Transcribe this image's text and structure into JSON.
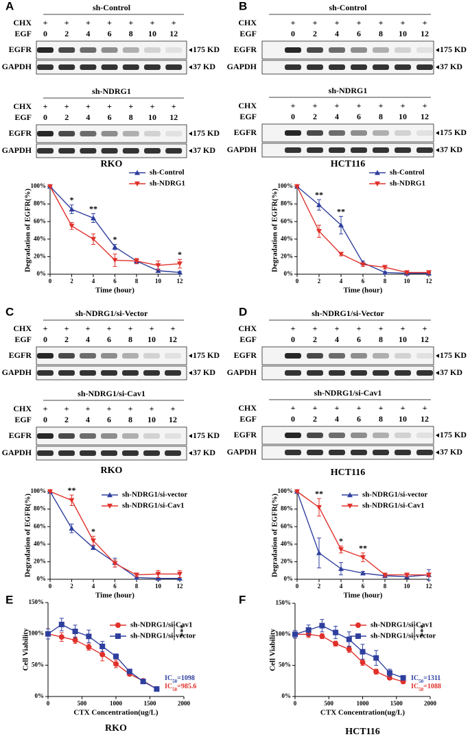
{
  "blots": [
    {
      "panel": "A",
      "cell": "RKO",
      "blots": [
        {
          "title": "sh-Control",
          "chx_label": "CHX",
          "chx": [
            "+",
            "+",
            "+",
            "+",
            "+",
            "+",
            "+"
          ],
          "egf_label": "EGF",
          "egf": [
            "0",
            "2",
            "4",
            "6",
            "8",
            "10",
            "12"
          ],
          "rows": [
            {
              "label": "EGFR",
              "marker": "175 KD"
            },
            {
              "label": "GAPDH",
              "marker": "37 KD"
            }
          ]
        },
        {
          "title": "sh-NDRG1",
          "chx_label": "CHX",
          "chx": [
            "+",
            "+",
            "+",
            "+",
            "+",
            "+",
            "+"
          ],
          "egf_label": "EGF",
          "egf": [
            "0",
            "2",
            "4",
            "6",
            "8",
            "10",
            "12"
          ],
          "rows": [
            {
              "label": "EGFR",
              "marker": "175 KD"
            },
            {
              "label": "GAPDH",
              "marker": "37 KD"
            }
          ]
        }
      ]
    },
    {
      "panel": "B",
      "cell": "HCT116",
      "blots": [
        {
          "title": "sh-Control",
          "chx_label": "CHX",
          "chx": [
            "+",
            "+",
            "+",
            "+",
            "+",
            "+",
            "+"
          ],
          "egf_label": "EGF",
          "egf": [
            "0",
            "2",
            "4",
            "6",
            "8",
            "10",
            "12"
          ],
          "rows": [
            {
              "label": "EGFR",
              "marker": "175 KD"
            },
            {
              "label": "GAPDH",
              "marker": "37 KD"
            }
          ]
        },
        {
          "title": "sh-NDRG1",
          "chx_label": "CHX",
          "chx": [
            "+",
            "+",
            "+",
            "+",
            "+",
            "+",
            "+"
          ],
          "egf_label": "EGF",
          "egf": [
            "0",
            "2",
            "4",
            "6",
            "8",
            "10",
            "12"
          ],
          "rows": [
            {
              "label": "EGFR",
              "marker": "175 KD"
            },
            {
              "label": "GAPDH",
              "marker": "37 KD"
            }
          ]
        }
      ]
    },
    {
      "panel": "C",
      "cell": "RKO",
      "blots": [
        {
          "title": "sh-NDRG1/si-Vector",
          "chx_label": "CHX",
          "chx": [
            "+",
            "+",
            "+",
            "+",
            "+",
            "+",
            "+"
          ],
          "egf_label": "EGF",
          "egf": [
            "0",
            "2",
            "4",
            "6",
            "8",
            "10",
            "12"
          ],
          "rows": [
            {
              "label": "EGFR",
              "marker": "175 KD"
            },
            {
              "label": "GAPDH",
              "marker": "37 KD"
            }
          ]
        },
        {
          "title": "sh-NDRG1/si-Cav1",
          "chx_label": "CHX",
          "chx": [
            "+",
            "+",
            "+",
            "+",
            "+",
            "+",
            "+"
          ],
          "egf_label": "EGF",
          "egf": [
            "0",
            "2",
            "4",
            "6",
            "8",
            "10",
            "12"
          ],
          "rows": [
            {
              "label": "EGFR",
              "marker": "175 KD"
            },
            {
              "label": "GAPDH",
              "marker": "37 KD"
            }
          ]
        }
      ]
    },
    {
      "panel": "D",
      "cell": "HCT116",
      "blots": [
        {
          "title": "sh-NDRG1/si-Vector",
          "chx_label": "CHX",
          "chx": [
            "+",
            "+",
            "+",
            "+",
            "+",
            "+",
            "+"
          ],
          "egf_label": "EGF",
          "egf": [
            "0",
            "2",
            "4",
            "6",
            "8",
            "10",
            "12"
          ],
          "rows": [
            {
              "label": "EGFR",
              "marker": "175 KD"
            },
            {
              "label": "GAPDH",
              "marker": "37 KD"
            }
          ]
        },
        {
          "title": "sh-NDRG1/si-Cav1",
          "chx_label": "CHX",
          "chx": [
            "+",
            "+",
            "+",
            "+",
            "+",
            "+",
            "+"
          ],
          "egf_label": "EGF",
          "egf": [
            "0",
            "2",
            "4",
            "6",
            "8",
            "10",
            "12"
          ],
          "rows": [
            {
              "label": "EGFR",
              "marker": "175 KD"
            },
            {
              "label": "GAPDH",
              "marker": "37 KD"
            }
          ]
        }
      ]
    }
  ],
  "chart_data": [
    {
      "type": "line",
      "xlabel": "Time (hour)",
      "ylabel": "Degradation of EGFR(%)",
      "x": [
        0,
        2,
        4,
        6,
        8,
        10,
        12
      ],
      "xlim": [
        0,
        12
      ],
      "xticks": [
        0,
        2,
        4,
        6,
        8,
        10,
        12
      ],
      "ylim": [
        0,
        100
      ],
      "yticks": [
        {
          "value": 0,
          "label": "0%"
        },
        {
          "value": 20,
          "label": "20%"
        },
        {
          "value": 40,
          "label": "40%"
        },
        {
          "value": 60,
          "label": "60%"
        },
        {
          "value": 80,
          "label": "80%"
        },
        {
          "value": 100,
          "label": "100%"
        }
      ],
      "series": [
        {
          "name": "sh-Control",
          "color": "#2e3f9e",
          "marker": "triangle-up",
          "values": [
            100,
            74,
            64,
            31,
            15,
            4,
            2
          ],
          "errors": [
            0,
            5,
            5,
            3,
            3,
            2,
            1
          ]
        },
        {
          "name": "sh-NDRG1",
          "color": "#e0302a",
          "marker": "triangle-down",
          "values": [
            100,
            55,
            40,
            16,
            15,
            10,
            12
          ],
          "errors": [
            0,
            4,
            6,
            7,
            3,
            5,
            5
          ]
        }
      ],
      "annotations": [
        {
          "x": 2,
          "text": "*"
        },
        {
          "x": 4,
          "text": "**"
        },
        {
          "x": 6,
          "text": "*"
        },
        {
          "x": 12,
          "text": "*"
        }
      ]
    },
    {
      "type": "line",
      "xlabel": "Time (hour)",
      "ylabel": "Degradation of EGFR(%)",
      "x": [
        0,
        2,
        4,
        6,
        8,
        10,
        12
      ],
      "xlim": [
        0,
        12
      ],
      "xticks": [
        0,
        2,
        4,
        6,
        8,
        10,
        12
      ],
      "ylim": [
        0,
        100
      ],
      "yticks": [
        {
          "value": 0,
          "label": "0%"
        },
        {
          "value": 20,
          "label": "20%"
        },
        {
          "value": 40,
          "label": "40%"
        },
        {
          "value": 60,
          "label": "60%"
        },
        {
          "value": 80,
          "label": "80%"
        },
        {
          "value": 100,
          "label": "100%"
        }
      ],
      "series": [
        {
          "name": "sh-Control",
          "color": "#2e3f9e",
          "marker": "triangle-up",
          "values": [
            100,
            79,
            56,
            13,
            2,
            1,
            1
          ],
          "errors": [
            0,
            6,
            10,
            2,
            1,
            1,
            1
          ]
        },
        {
          "name": "sh-NDRG1",
          "color": "#e0302a",
          "marker": "triangle-down",
          "values": [
            100,
            49,
            23,
            11,
            8,
            2,
            2
          ],
          "errors": [
            0,
            7,
            2,
            2,
            2,
            1,
            1
          ]
        }
      ],
      "annotations": [
        {
          "x": 2,
          "text": "**"
        },
        {
          "x": 4,
          "text": "**"
        }
      ]
    },
    {
      "type": "line",
      "xlabel": "Time (hour)",
      "ylabel": "Degradation of EGFR(%)",
      "x": [
        0,
        2,
        4,
        6,
        8,
        10,
        12
      ],
      "xlim": [
        0,
        12
      ],
      "xticks": [
        0,
        2,
        4,
        6,
        8,
        10,
        12
      ],
      "ylim": [
        0,
        100
      ],
      "yticks": [
        {
          "value": 0,
          "label": "0%"
        },
        {
          "value": 20,
          "label": "20%"
        },
        {
          "value": 40,
          "label": "40%"
        },
        {
          "value": 60,
          "label": "60%"
        },
        {
          "value": 80,
          "label": "80%"
        },
        {
          "value": 100,
          "label": "100%"
        }
      ],
      "series": [
        {
          "name": "sh-NDRG1/si-vector",
          "color": "#2e3f9e",
          "marker": "triangle-up",
          "values": [
            100,
            58,
            36,
            19,
            2,
            1,
            1
          ],
          "errors": [
            0,
            5,
            2,
            5,
            1,
            1,
            1
          ]
        },
        {
          "name": "sh-NDRG1/si-Cav1",
          "color": "#e0302a",
          "marker": "triangle-down",
          "values": [
            100,
            90,
            44,
            18,
            5,
            6,
            6
          ],
          "errors": [
            0,
            6,
            5,
            4,
            2,
            4,
            4
          ]
        }
      ],
      "annotations": [
        {
          "x": 2,
          "text": "**"
        },
        {
          "x": 4,
          "text": "*"
        }
      ]
    },
    {
      "type": "line",
      "xlabel": "Time (hour)",
      "ylabel": "Degradation of EGFR(%)",
      "x": [
        0,
        2,
        4,
        6,
        8,
        10,
        12
      ],
      "xlim": [
        0,
        12
      ],
      "xticks": [
        0,
        2,
        4,
        6,
        8,
        10,
        12
      ],
      "ylim": [
        0,
        100
      ],
      "yticks": [
        {
          "value": 0,
          "label": "0%"
        },
        {
          "value": 20,
          "label": "20%"
        },
        {
          "value": 40,
          "label": "40%"
        },
        {
          "value": 60,
          "label": "60%"
        },
        {
          "value": 80,
          "label": "80%"
        },
        {
          "value": 100,
          "label": "100%"
        }
      ],
      "series": [
        {
          "name": "sh-NDRG1/si-vector",
          "color": "#2e3f9e",
          "marker": "triangle-up",
          "values": [
            100,
            30,
            12,
            7,
            4,
            3,
            5
          ],
          "errors": [
            0,
            17,
            7,
            2,
            1,
            2,
            6
          ]
        },
        {
          "name": "sh-NDRG1/si-Cav1",
          "color": "#e0302a",
          "marker": "triangle-down",
          "values": [
            100,
            82,
            34,
            25,
            5,
            5,
            5
          ],
          "errors": [
            0,
            10,
            4,
            5,
            2,
            2,
            2
          ]
        }
      ],
      "annotations": [
        {
          "x": 2,
          "text": "**"
        },
        {
          "x": 4,
          "text": "*"
        },
        {
          "x": 6,
          "text": "**"
        }
      ]
    },
    {
      "type": "line",
      "panel": "E",
      "caption": "RKO",
      "xlabel": "CTX Concentration(ug/L)",
      "ylabel": "Cell Viability",
      "x": [
        0,
        200,
        400,
        600,
        800,
        1000,
        1200,
        1400,
        1600
      ],
      "xlim": [
        0,
        2000
      ],
      "xticks": [
        0,
        500,
        1000,
        1500,
        2000
      ],
      "ylim": [
        0,
        150
      ],
      "yticks": [
        {
          "value": 0,
          "label": "0%"
        },
        {
          "value": 50,
          "label": "50%"
        },
        {
          "value": 100,
          "label": "100%"
        },
        {
          "value": 150,
          "label": "150%"
        }
      ],
      "series": [
        {
          "name": "sh-NDRG1/si-Cav1",
          "color": "#e0302a",
          "marker": "circle",
          "values": [
            100,
            95,
            90,
            79,
            67,
            52,
            36,
            25,
            12
          ],
          "errors": [
            8,
            7,
            5,
            5,
            10,
            6,
            3,
            3,
            2
          ]
        },
        {
          "name": "sh-NDRG1/si-vector",
          "color": "#2e3f9e",
          "marker": "square",
          "values": [
            100,
            115,
            104,
            96,
            80,
            64,
            40,
            24,
            12
          ],
          "errors": [
            8,
            10,
            10,
            10,
            8,
            4,
            2,
            2,
            2
          ]
        }
      ],
      "significance": "***",
      "ic50_labels": [
        {
          "label": "IC",
          "sub": "50",
          "text": "=1098",
          "color": "#2e3f9e"
        },
        {
          "label": "IC",
          "sub": "50",
          "text": "=985.6",
          "color": "#e0302a"
        }
      ]
    },
    {
      "type": "line",
      "panel": "F",
      "caption": "HCT116",
      "xlabel": "CTX Concentration(ug/L)",
      "ylabel": "Cell Viability",
      "x": [
        0,
        200,
        400,
        600,
        800,
        1000,
        1200,
        1400,
        1600
      ],
      "xlim": [
        0,
        2000
      ],
      "xticks": [
        0,
        500,
        1000,
        1500,
        2000
      ],
      "ylim": [
        0,
        150
      ],
      "yticks": [
        {
          "value": 0,
          "label": "0%"
        },
        {
          "value": 50,
          "label": "50%"
        },
        {
          "value": 100,
          "label": "100%"
        },
        {
          "value": 150,
          "label": "150%"
        }
      ],
      "series": [
        {
          "name": "sh-NDRG1/si-Cav1",
          "color": "#e0302a",
          "marker": "circle",
          "values": [
            100,
            100,
            97,
            85,
            76,
            55,
            40,
            30,
            24
          ],
          "errors": [
            6,
            5,
            4,
            4,
            5,
            5,
            4,
            3,
            3
          ]
        },
        {
          "name": "sh-NDRG1/si-vector",
          "color": "#2e3f9e",
          "marker": "square",
          "values": [
            100,
            107,
            114,
            103,
            92,
            72,
            62,
            38,
            30
          ],
          "errors": [
            6,
            8,
            10,
            10,
            12,
            12,
            12,
            6,
            3
          ]
        }
      ],
      "significance": "***",
      "ic50_labels": [
        {
          "label": "IC",
          "sub": "50",
          "text": "=1311",
          "color": "#2e3f9e"
        },
        {
          "label": "IC",
          "sub": "50",
          "text": "=1088",
          "color": "#e0302a"
        }
      ]
    }
  ]
}
